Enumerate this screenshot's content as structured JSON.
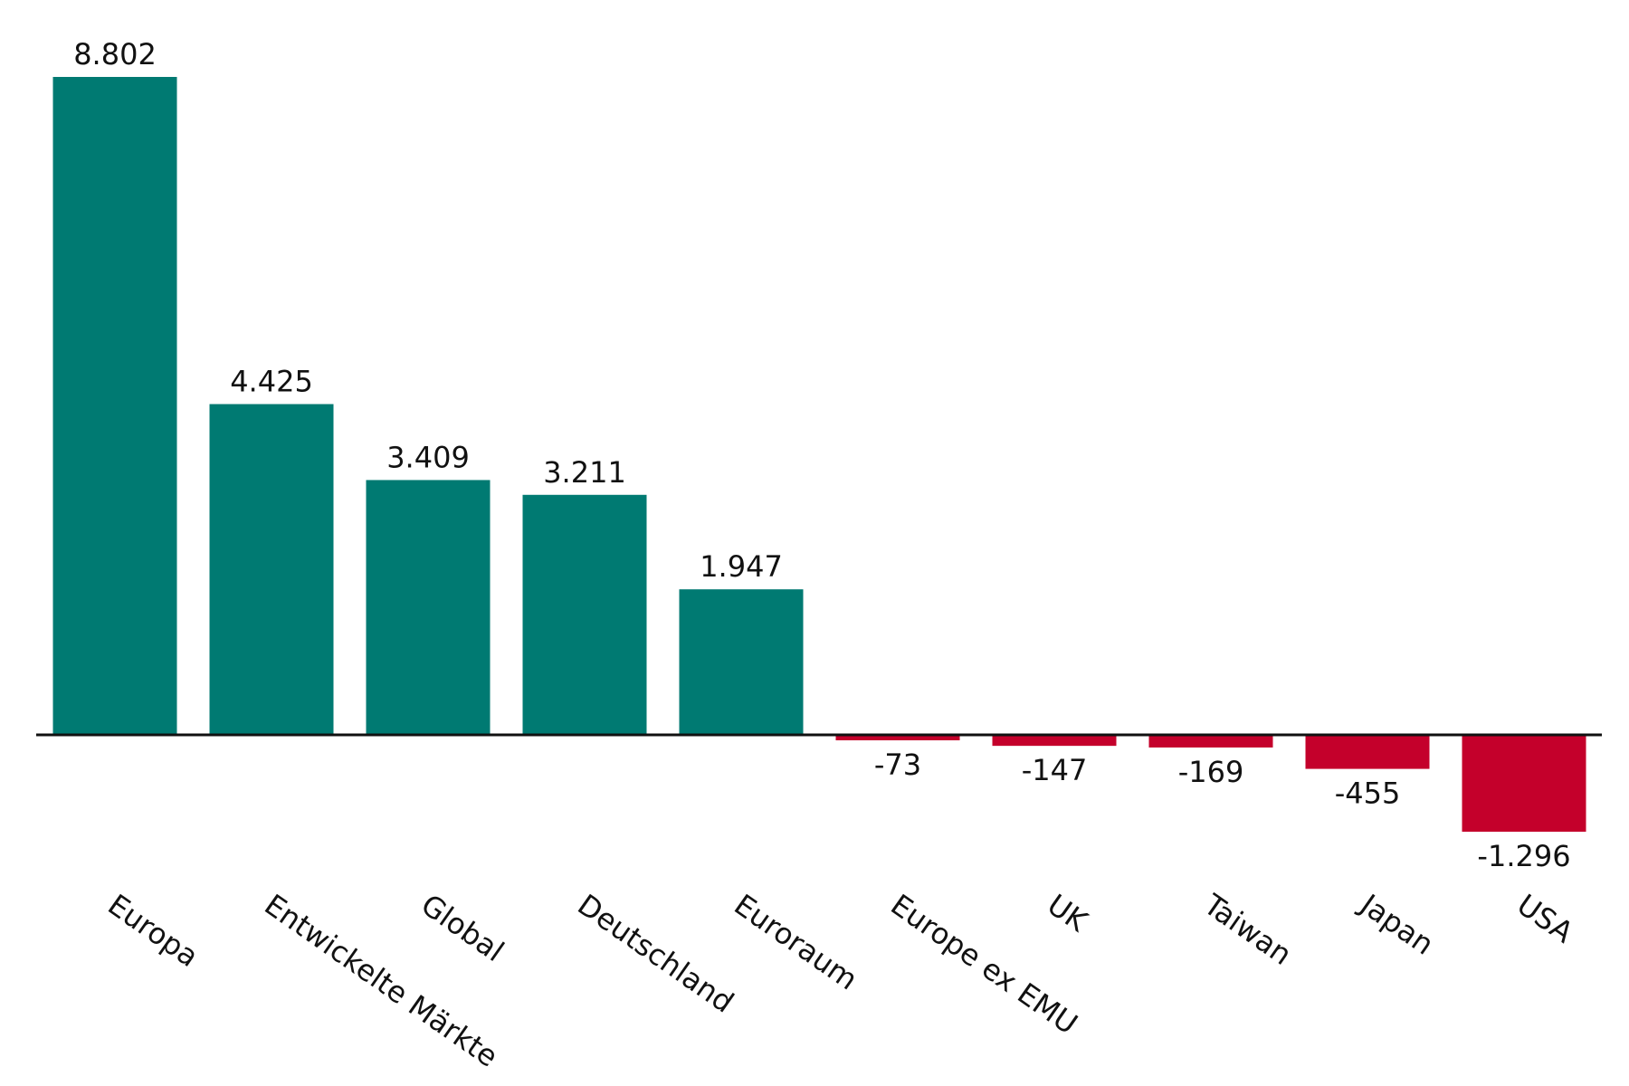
{
  "chart_data": {
    "type": "bar",
    "categories": [
      "Europa",
      "Entwickelte Märkte",
      "Global",
      "Deutschland",
      "Euroraum",
      "Europe ex EMU",
      "UK",
      "Taiwan",
      "Japan",
      "USA"
    ],
    "values": [
      8802,
      4425,
      3409,
      3211,
      1947,
      -73,
      -147,
      -169,
      -455,
      -1296
    ],
    "value_labels": [
      "8.802",
      "4.425",
      "3.409",
      "3.211",
      "1.947",
      "-73",
      "-147",
      "-169",
      "-455",
      "-1.296"
    ],
    "title": "",
    "xlabel": "",
    "ylabel": "",
    "ylim": [
      -1296,
      8802
    ],
    "grid": false,
    "zero_line": true,
    "colors": {
      "positive": "#007a72",
      "negative": "#c4002b",
      "zero_line": "#111111"
    }
  }
}
